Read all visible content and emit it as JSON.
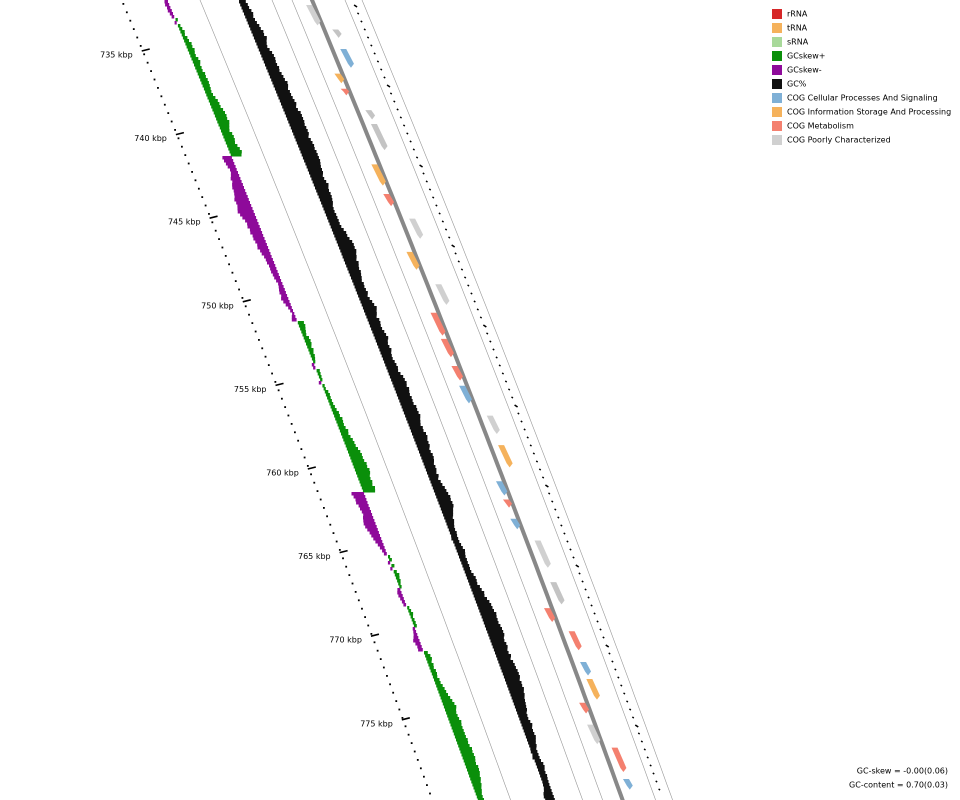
{
  "legend": [
    {
      "label": "rRNA",
      "color": "#d62728"
    },
    {
      "label": "tRNA",
      "color": "#f5b25c"
    },
    {
      "label": "sRNA",
      "color": "#a8d99a"
    },
    {
      "label": "GCskew+",
      "color": "#0a8f0a"
    },
    {
      "label": "GCskew-",
      "color": "#8e0a9a"
    },
    {
      "label": "GC%",
      "color": "#111111"
    },
    {
      "label": "COG Cellular Processes And Signaling",
      "color": "#7fb0d6"
    },
    {
      "label": "COG Information Storage And Processing",
      "color": "#f5b25c"
    },
    {
      "label": "COG Metabolism",
      "color": "#f4806f"
    },
    {
      "label": "COG Poorly Characterized",
      "color": "#d0d0d0"
    }
  ],
  "ruler": {
    "labels": [
      "735 kbp",
      "740 kbp",
      "745 kbp",
      "750 kbp",
      "755 kbp",
      "760 kbp",
      "765 kbp",
      "770 kbp",
      "775 kbp"
    ]
  },
  "footer": [
    "GC-skew = -0.00(0.06)",
    "GC-content = 0.70(0.03)"
  ]
}
